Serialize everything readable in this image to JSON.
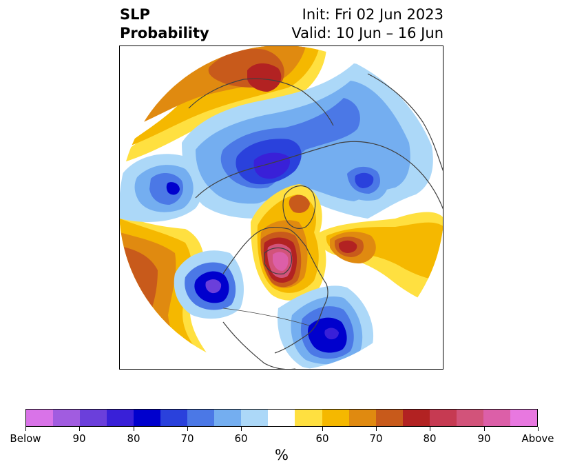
{
  "header": {
    "title_line1": "SLP",
    "title_line2": "Probability",
    "init_text": "Init: Fri 02 Jun 2023",
    "valid_text": "Valid: 10 Jun – 16 Jun"
  },
  "colorbar": {
    "colors": [
      "#d973e8",
      "#a15ce0",
      "#6b3fdb",
      "#3920d8",
      "#0000cd",
      "#2a41dc",
      "#4b78e6",
      "#74aef0",
      "#acd8f8",
      "#ffffff",
      "#ffe040",
      "#f5b800",
      "#e08a10",
      "#c85a1b",
      "#b22222",
      "#c63a52",
      "#d2537a",
      "#dc5fa8",
      "#e878e0"
    ],
    "tick_labels": [
      "Below",
      "90",
      "80",
      "70",
      "60",
      "60",
      "70",
      "80",
      "90",
      "Above"
    ],
    "unit_label": "%"
  },
  "map": {
    "projection": "north-polar-stereographic",
    "palette": {
      "pink": "#dc5fa8",
      "rose": "#d2537a",
      "red": "#b22222",
      "brick": "#c85a1b",
      "orange": "#e08a10",
      "gold": "#f5b800",
      "yellow": "#ffe040",
      "pale_blue": "#acd8f8",
      "light_blue": "#74aef0",
      "mid_blue": "#4b78e6",
      "blue": "#2a41dc",
      "deep_blue": "#0000cd",
      "indigo": "#3920d8",
      "violet": "#6b3fdb",
      "lavender": "#a15ce0",
      "coast": "#404040"
    }
  }
}
